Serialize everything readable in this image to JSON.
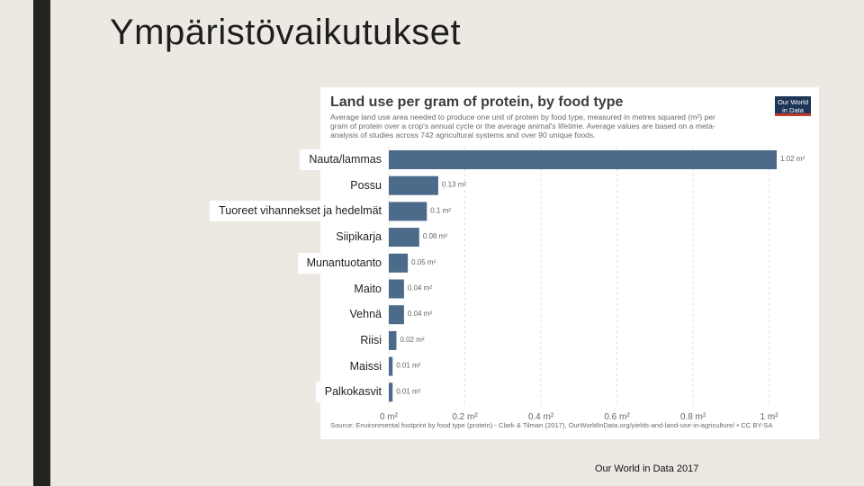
{
  "slide": {
    "title": "Ympäristövaikutukset",
    "credit": "Our World in Data 2017"
  },
  "chart_card": {
    "title": "Land use per gram of protein, by food type",
    "subtitle": "Average land use area needed to produce one unit of protein by food type, measured in metres squared (m²) per gram of protein over a crop's annual cycle or the average animal's lifetime. Average values are based on a meta-analysis of studies across 742 agricultural systems and over 90 unique foods.",
    "logo": "Our World in Data",
    "source": "Source: Environmental footprint by food type (protein) - Clark & Tilman (2017), OurWorldInData.org/yields-and-land-use-in-agriculture/ • CC BY-SA"
  },
  "colors": {
    "bar": "#4c6a8a",
    "grid": "#e0e0e0",
    "background": "#ece9e2",
    "left_bar": "#23231f"
  },
  "chart_data": {
    "type": "bar",
    "orientation": "horizontal",
    "title": "Land use per gram of protein, by food type",
    "categories": [
      "Nauta/lammas",
      "Possu",
      "Tuoreet vihannekset ja hedelmät",
      "Siipikarja",
      "Munantuotanto",
      "Maito",
      "Vehnä",
      "Riisi",
      "Maissi",
      "Palkokasvit"
    ],
    "values": [
      1.02,
      0.13,
      0.1,
      0.08,
      0.05,
      0.04,
      0.04,
      0.02,
      0.01,
      0.01
    ],
    "data_labels": [
      "1.02 m²",
      "0.13 m²",
      "0.1 m²",
      "0.08 m²",
      "0.05 m²",
      "0.04 m²",
      "0.04 m²",
      "0.02 m²",
      "0.01 m²",
      "0.01 m²"
    ],
    "x_ticks": [
      {
        "value": 0,
        "label": "0 m²"
      },
      {
        "value": 0.2,
        "label": "0.2 m²"
      },
      {
        "value": 0.4,
        "label": "0.4 m²"
      },
      {
        "value": 0.6,
        "label": "0.6 m²"
      },
      {
        "value": 0.8,
        "label": "0.8 m²"
      },
      {
        "value": 1.0,
        "label": "1 m²"
      }
    ],
    "xlim": [
      0,
      1.02
    ],
    "grid": true,
    "legend": "none"
  }
}
